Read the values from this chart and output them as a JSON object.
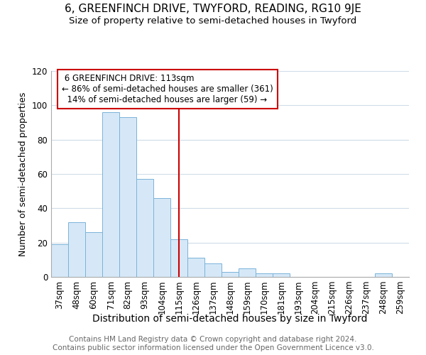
{
  "title": "6, GREENFINCH DRIVE, TWYFORD, READING, RG10 9JE",
  "subtitle": "Size of property relative to semi-detached houses in Twyford",
  "xlabel": "Distribution of semi-detached houses by size in Twyford",
  "ylabel": "Number of semi-detached properties",
  "categories": [
    "37sqm",
    "48sqm",
    "60sqm",
    "71sqm",
    "82sqm",
    "93sqm",
    "104sqm",
    "115sqm",
    "126sqm",
    "137sqm",
    "148sqm",
    "159sqm",
    "170sqm",
    "181sqm",
    "193sqm",
    "204sqm",
    "215sqm",
    "226sqm",
    "237sqm",
    "248sqm",
    "259sqm"
  ],
  "values": [
    19,
    32,
    26,
    96,
    93,
    57,
    46,
    22,
    11,
    8,
    3,
    5,
    2,
    2,
    0,
    0,
    0,
    0,
    0,
    2,
    0
  ],
  "bar_color": "#d6e8f7",
  "bar_edge_color": "#7ab3d9",
  "property_line_idx": 7,
  "property_size": "113sqm",
  "pct_smaller": 86,
  "n_smaller": 361,
  "pct_larger": 14,
  "n_larger": 59,
  "annotation_box_color": "#ffffff",
  "annotation_box_edge": "#cc0000",
  "line_color": "#cc0000",
  "ylim": [
    0,
    120
  ],
  "yticks": [
    0,
    20,
    40,
    60,
    80,
    100,
    120
  ],
  "footer1": "Contains HM Land Registry data © Crown copyright and database right 2024.",
  "footer2": "Contains public sector information licensed under the Open Government Licence v3.0.",
  "bg_color": "#ffffff",
  "title_fontsize": 11,
  "subtitle_fontsize": 9.5,
  "xlabel_fontsize": 10,
  "ylabel_fontsize": 9,
  "footer_fontsize": 7.5,
  "tick_fontsize": 8.5,
  "grid_color": "#d0dce8"
}
